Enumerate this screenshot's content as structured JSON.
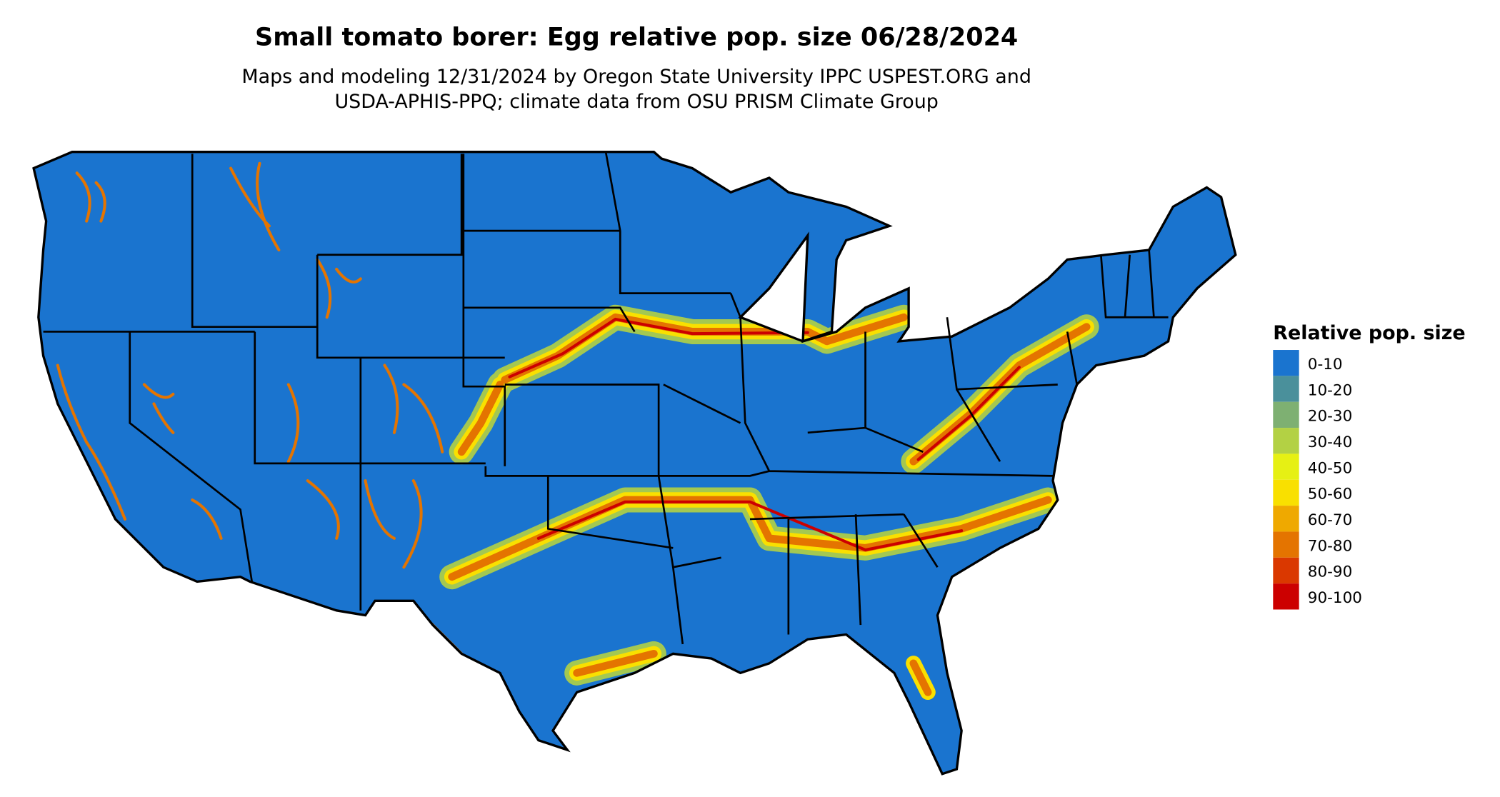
{
  "title": "Small tomato borer: Egg relative pop. size 06/28/2024",
  "subtitle_line1": "Maps and modeling 12/31/2024 by Oregon State University IPPC USPEST.ORG and",
  "subtitle_line2": "USDA-APHIS-PPQ; climate data from OSU PRISM Climate Group",
  "legend": {
    "title": "Relative pop. size",
    "items": [
      {
        "label": "0-10",
        "color": "#1a74cf"
      },
      {
        "label": "10-20",
        "color": "#4a909b"
      },
      {
        "label": "20-30",
        "color": "#7eb072"
      },
      {
        "label": "30-40",
        "color": "#b3d144"
      },
      {
        "label": "40-50",
        "color": "#e6f014"
      },
      {
        "label": "50-60",
        "color": "#f9e000"
      },
      {
        "label": "60-70",
        "color": "#efa900"
      },
      {
        "label": "70-80",
        "color": "#e47400"
      },
      {
        "label": "80-90",
        "color": "#da3800"
      },
      {
        "label": "90-100",
        "color": "#cc0000"
      }
    ]
  }
}
